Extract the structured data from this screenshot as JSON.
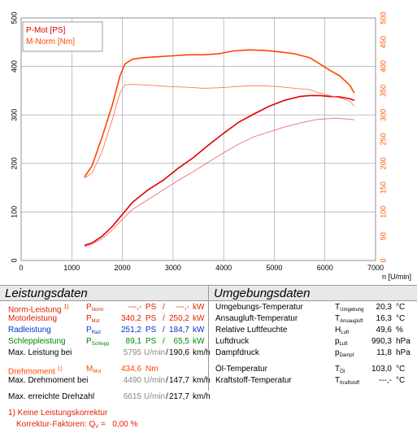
{
  "chart_data": {
    "type": "line",
    "xlabel": "n [U/min]",
    "xlim": [
      0,
      7000
    ],
    "xticks": [
      0,
      1000,
      2000,
      3000,
      4000,
      5000,
      6000,
      7000
    ],
    "ylim_left": [
      0,
      500
    ],
    "yticks_left": [
      0,
      100,
      200,
      300,
      400,
      500
    ],
    "ylim_right": [
      0,
      500
    ],
    "yticks_right": [
      0,
      50,
      100,
      150,
      200,
      250,
      300,
      350,
      400,
      450,
      500
    ],
    "legend": {
      "placement": "top-left",
      "entries": [
        "P-Mot [PS]",
        "M-Norm [Nm]"
      ]
    },
    "colors": {
      "power": "#e00000",
      "power_thin": "#f07070",
      "torque": "#ff4400",
      "torque_thin": "#f08050",
      "right_axis": "#ff5500",
      "grid": "#999999"
    },
    "series": [
      {
        "name": "P-Mot [PS]",
        "axis": "left",
        "style": "bold",
        "x": [
          1250,
          1400,
          1600,
          1800,
          2000,
          2200,
          2500,
          2800,
          3100,
          3400,
          3700,
          4000,
          4300,
          4600,
          4900,
          5200,
          5500,
          5700,
          5900,
          6100,
          6300,
          6500,
          6580
        ],
        "y": [
          31,
          36,
          50,
          70,
          95,
          120,
          145,
          165,
          190,
          212,
          238,
          262,
          285,
          302,
          318,
          330,
          338,
          340,
          340,
          338,
          337,
          333,
          330
        ]
      },
      {
        "name": "",
        "axis": "left",
        "style": "thin",
        "x": [
          1250,
          1400,
          1600,
          1800,
          2000,
          2200,
          2500,
          2800,
          3100,
          3400,
          3700,
          4000,
          4300,
          4600,
          4900,
          5200,
          5500,
          5800,
          6000,
          6200,
          6400,
          6580
        ],
        "y": [
          28,
          34,
          45,
          63,
          85,
          105,
          125,
          145,
          165,
          183,
          203,
          222,
          240,
          255,
          265,
          275,
          283,
          290,
          292,
          293,
          292,
          290
        ]
      },
      {
        "name": "M-Norm [Nm]",
        "axis": "right",
        "style": "bold",
        "x": [
          1250,
          1400,
          1600,
          1800,
          1950,
          2050,
          2200,
          2400,
          2700,
          3000,
          3300,
          3600,
          3900,
          4200,
          4500,
          4800,
          5100,
          5400,
          5700,
          5900,
          6100,
          6300,
          6500,
          6580
        ],
        "y": [
          172,
          195,
          255,
          320,
          380,
          405,
          415,
          418,
          420,
          422,
          424,
          424,
          426,
          432,
          434,
          433,
          430,
          426,
          418,
          405,
          392,
          380,
          360,
          345
        ]
      },
      {
        "name": "",
        "axis": "right",
        "style": "thin",
        "x": [
          1250,
          1400,
          1600,
          1800,
          1950,
          2050,
          2200,
          2400,
          2700,
          3000,
          3300,
          3600,
          3900,
          4200,
          4500,
          4800,
          5100,
          5400,
          5700,
          5900,
          6100,
          6300,
          6500,
          6580
        ],
        "y": [
          170,
          180,
          225,
          290,
          345,
          362,
          363,
          362,
          360,
          358,
          357,
          355,
          356,
          358,
          360,
          360,
          358,
          355,
          352,
          345,
          340,
          335,
          328,
          318
        ]
      }
    ]
  },
  "leistungsdaten": {
    "title": "Leistungsdaten",
    "rows": [
      {
        "label": "Norm-Leistung",
        "note": "1)",
        "sym": "P",
        "sub": "Norm",
        "v1": "---,-",
        "u1": "PS",
        "sep": "/",
        "v2": "---,-",
        "u2": "kW"
      },
      {
        "label": "Motorleistung",
        "note": "",
        "sym": "P",
        "sub": "Mot",
        "v1": "340,2",
        "u1": "PS",
        "sep": "/",
        "v2": "250,2",
        "u2": "kW"
      },
      {
        "label": "Radleistung",
        "note": "",
        "sym": "P",
        "sub": "Rad",
        "v1": "251,2",
        "u1": "PS",
        "sep": "/",
        "v2": "184,7",
        "u2": "kW"
      },
      {
        "label": "Schleppleistung",
        "note": "",
        "sym": "P",
        "sub": "Schlepp",
        "v1": "89,1",
        "u1": "PS",
        "sep": "/",
        "v2": "65,5",
        "u2": "kW"
      }
    ],
    "max_leistung": {
      "label": "Max. Leistung bei",
      "rpm": "5795",
      "rpm_unit": "U/min",
      "sep": "/",
      "speed": "190,6",
      "speed_unit": "km/h"
    },
    "drehmoment": {
      "label": "Drehmoment",
      "note": "1)",
      "sym": "M",
      "sub": "Mot",
      "value": "434,6",
      "unit": "Nm"
    },
    "max_drehmoment": {
      "label": "Max. Drehmoment bei",
      "rpm": "4490",
      "rpm_unit": "U/min",
      "sep": "/",
      "speed": "147,7",
      "speed_unit": "km/h"
    },
    "max_drehzahl": {
      "label": "Max. erreichte Drehzahl",
      "rpm": "6615",
      "rpm_unit": "U/min",
      "sep": "/",
      "speed": "217,7",
      "speed_unit": "km/h"
    },
    "footnote_line1": "1) Keine Leistungskorrektur",
    "footnote_line2_label": "Korrektur-Faktoren: Q",
    "footnote_line2_sub": "V",
    "footnote_line2_value": " =   0,00 %"
  },
  "umgebungsdaten": {
    "title": "Umgebungsdaten",
    "rows": [
      {
        "label": "Umgebungs-Temperatur",
        "sym": "T",
        "sub": "Umgebung",
        "value": "20,3",
        "unit": "°C"
      },
      {
        "label": "Ansaugluft-Temperatur",
        "sym": "T",
        "sub": "Ansaugluft",
        "value": "16,3",
        "unit": "°C"
      },
      {
        "label": "Relative Luftfeuchte",
        "sym": "H",
        "sub": "Luft",
        "value": "49,6",
        "unit": "%"
      },
      {
        "label": "Luftdruck",
        "sym": "p",
        "sub": "Luft",
        "value": "990,3",
        "unit": "hPa"
      },
      {
        "label": "Dampfdruck",
        "sym": "p",
        "sub": "Dampf",
        "value": "11,8",
        "unit": "hPa"
      },
      {
        "label": "Öl-Temperatur",
        "sym": "T",
        "sub": "Öl",
        "value": "103,0",
        "unit": "°C"
      },
      {
        "label": "Kraftstoff-Temperatur",
        "sym": "T",
        "sub": "Kraftstoff",
        "value": "---,-",
        "unit": "°C"
      }
    ]
  }
}
